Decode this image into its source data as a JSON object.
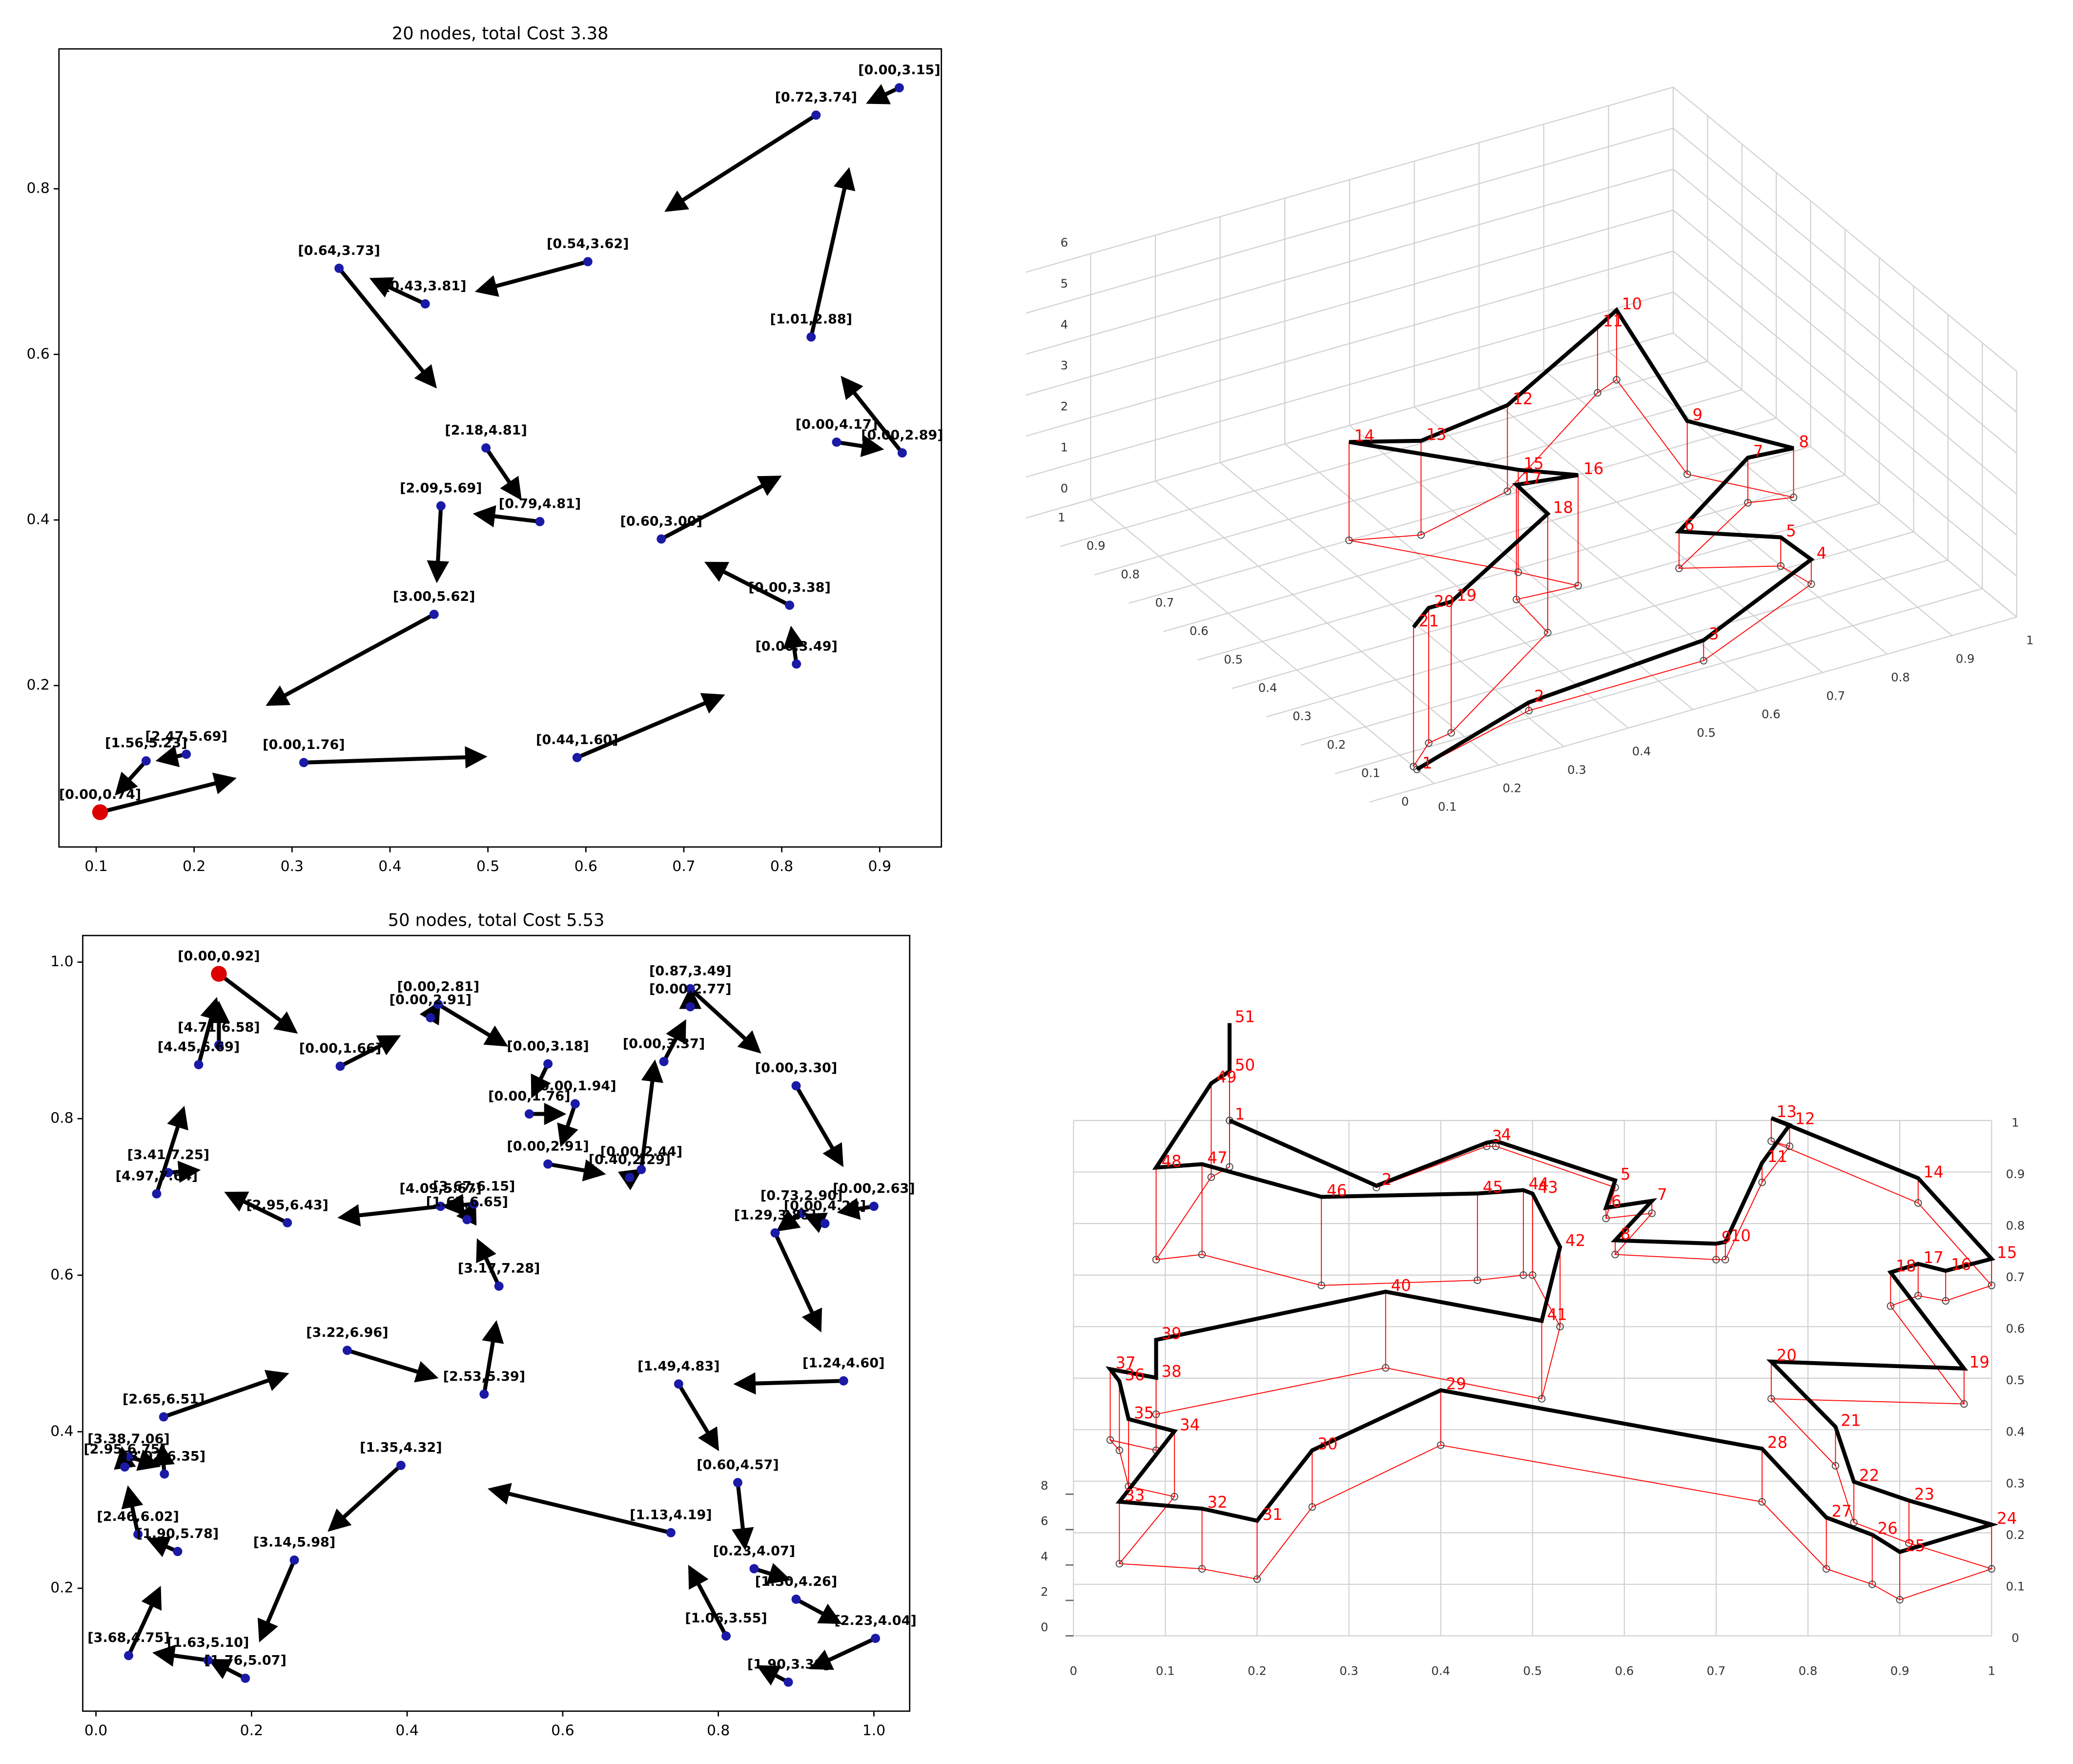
{
  "chart_data": [
    {
      "type": "quiver",
      "title": "20 nodes, total Cost 3.38",
      "x": [
        0.104,
        0.151,
        0.192,
        0.312,
        0.591,
        0.815,
        0.808,
        0.677,
        0.923,
        0.856,
        0.83,
        0.92,
        0.835,
        0.602,
        0.436,
        0.348,
        0.498,
        0.553,
        0.452,
        0.445
      ],
      "y": [
        0.047,
        0.109,
        0.117,
        0.107,
        0.113,
        0.226,
        0.297,
        0.377,
        0.481,
        0.494,
        0.621,
        0.922,
        0.889,
        0.712,
        0.661,
        0.704,
        0.487,
        0.398,
        0.417,
        0.286
      ],
      "u": [
        0.135,
        -0.029,
        -0.027,
        0.183,
        0.147,
        -0.005,
        -0.083,
        0.119,
        -0.06,
        0.044,
        0.038,
        -0.03,
        -0.151,
        -0.111,
        -0.053,
        0.097,
        0.034,
        -0.064,
        -0.004,
        -0.168
      ],
      "v": [
        0.04,
        -0.038,
        -0.007,
        0.007,
        0.074,
        0.041,
        0.05,
        0.074,
        0.089,
        -0.008,
        0.2,
        -0.017,
        -0.114,
        -0.035,
        0.029,
        -0.141,
        -0.059,
        0.009,
        -0.088,
        -0.108
      ],
      "labels": [
        "[0.00,0.74]",
        "[1.56,5.23]",
        "[2.47,5.69]",
        "[0.00,1.76]",
        "[0.44,1.60]",
        "[0.00,3.49]",
        "[0.00,3.38]",
        "[0.60,3.00]",
        "[0.00,2.89]",
        "[0.00,4.17]",
        "[1.01,2.88]",
        "[0.00,3.15]",
        "[0.72,3.74]",
        "[0.54,3.62]",
        "[0.43,3.81]",
        "[0.64,3.73]",
        "[2.18,4.81]",
        "[0.79,4.81]",
        "[2.09,5.69]",
        "[3.00,5.62]"
      ],
      "color": "#1a1aa6",
      "depot_color": "#dd0000",
      "arrow_color": "#000000",
      "xlim": [
        0.062,
        0.963
      ],
      "ylim": [
        0.005,
        0.969
      ],
      "xticks": [
        0.1,
        0.2,
        0.3,
        0.4,
        0.5,
        0.6,
        0.7,
        0.8,
        0.9
      ],
      "yticks": [
        0.2,
        0.4,
        0.6,
        0.8
      ]
    },
    {
      "type": "line3d",
      "x": [
        0.1,
        0.31,
        0.58,
        0.81,
        0.8,
        0.68,
        0.85,
        0.91,
        0.82,
        0.87,
        0.83,
        0.59,
        0.43,
        0.34,
        0.49,
        0.54,
        0.45,
        0.44,
        0.19,
        0.15,
        0.1
      ],
      "y": [
        0.05,
        0.12,
        0.12,
        0.24,
        0.31,
        0.38,
        0.5,
        0.48,
        0.62,
        0.92,
        0.9,
        0.71,
        0.66,
        0.7,
        0.49,
        0.41,
        0.42,
        0.31,
        0.12,
        0.11,
        0.06
      ],
      "z": [
        0,
        0.2,
        0.5,
        0.6,
        0.7,
        0.9,
        1.1,
        1.2,
        1.3,
        1.7,
        1.6,
        2.1,
        2.3,
        2.4,
        2.5,
        2.7,
        2.8,
        2.9,
        3.2,
        3.3,
        3.4
      ],
      "labels": [
        1,
        2,
        3,
        4,
        5,
        6,
        7,
        8,
        9,
        10,
        11,
        12,
        13,
        14,
        15,
        16,
        17,
        18,
        19,
        20,
        21
      ],
      "path_color": "#000000",
      "floor_color": "#ff0000",
      "label_color": "#ff0000",
      "xlim": [
        0,
        1
      ],
      "ylim": [
        0,
        1
      ],
      "zlim": [
        0,
        6
      ],
      "xticks": [
        0.1,
        0.2,
        0.3,
        0.4,
        0.5,
        0.6,
        0.7,
        0.8,
        0.9,
        1
      ],
      "yticks": [
        0,
        0.1,
        0.2,
        0.3,
        0.4,
        0.5,
        0.6,
        0.7,
        0.8,
        0.9,
        1
      ],
      "zticks": [
        0,
        1,
        2,
        3,
        4,
        5,
        6
      ],
      "grid": true
    },
    {
      "type": "quiver",
      "title": "50 nodes, total Cost 5.53",
      "x": [
        0.158,
        0.314,
        0.43,
        0.44,
        0.581,
        0.557,
        0.616,
        0.581,
        0.686,
        0.701,
        0.73,
        0.764,
        0.764,
        0.9,
        1.0,
        0.937,
        0.907,
        0.873,
        0.961,
        0.749,
        0.825,
        0.846,
        0.9,
        1.002,
        0.89,
        0.81,
        0.739,
        0.392,
        0.255,
        0.192,
        0.144,
        0.042,
        0.105,
        0.054,
        0.037,
        0.088,
        0.042,
        0.087,
        0.323,
        0.499,
        0.518,
        0.477,
        0.486,
        0.443,
        0.246,
        0.078,
        0.093,
        0.132,
        0.158
      ],
      "y": [
        0.985,
        0.867,
        0.929,
        0.946,
        0.87,
        0.806,
        0.819,
        0.742,
        0.725,
        0.735,
        0.873,
        0.943,
        0.966,
        0.842,
        0.688,
        0.666,
        0.679,
        0.654,
        0.465,
        0.461,
        0.335,
        0.225,
        0.186,
        0.136,
        0.08,
        0.139,
        0.271,
        0.357,
        0.236,
        0.085,
        0.108,
        0.114,
        0.247,
        0.269,
        0.355,
        0.346,
        0.368,
        0.419,
        0.504,
        0.448,
        0.586,
        0.671,
        0.691,
        0.688,
        0.667,
        0.704,
        0.731,
        0.869,
        0.894
      ],
      "u": [
        0.097,
        0.073,
        0.01,
        0.085,
        -0.019,
        0.042,
        -0.017,
        0.069,
        0.012,
        0.017,
        0.026,
        0,
        0.087,
        0.058,
        -0.042,
        -0.023,
        -0.028,
        0.057,
        -0.136,
        0.049,
        0.009,
        0.042,
        0.054,
        -0.08,
        -0.036,
        -0.046,
        -0.23,
        -0.09,
        -0.043,
        -0.043,
        -0.066,
        0.039,
        -0.035,
        -0.012,
        -0.003,
        -0.003,
        0.036,
        0.156,
        0.112,
        0.015,
        -0.026,
        0.009,
        -0.036,
        -0.127,
        -0.076,
        0.034,
        0.036,
        0.022,
        0
      ],
      "v": [
        -0.073,
        0.037,
        0.017,
        -0.051,
        -0.039,
        0,
        -0.05,
        -0.012,
        0.008,
        0.135,
        0.049,
        0.02,
        -0.079,
        -0.099,
        -0.007,
        0.01,
        -0.02,
        -0.122,
        -0.004,
        -0.081,
        -0.081,
        -0.013,
        -0.029,
        -0.037,
        0.019,
        0.086,
        0.055,
        -0.081,
        -0.1,
        0.022,
        0.009,
        0.084,
        0.015,
        0.057,
        0.021,
        0.034,
        -0.011,
        0.054,
        -0.034,
        0.089,
        0.056,
        0.019,
        -0.003,
        -0.014,
        0.037,
        0.107,
        0.003,
        0.081,
        0.051
      ],
      "labels": [
        "[0.00,0.92]",
        "[0.00,1.66]",
        "[0.00,2.91]",
        "[0.00,2.81]",
        "[0.00,3.18]",
        "[0.00,1.76]",
        "[0.00,1.94]",
        "[0.00,2.91]",
        "[0.40,2.29]",
        "[0.00,2.44]",
        "[0.00,3.37]",
        "[0.00,2.77]",
        "[0.87,3.49]",
        "[0.00,3.30]",
        "[0.00,2.63]",
        "[0.00,4.22]",
        "[0.73,2.90]",
        "[1.29,3.85]",
        "[1.24,4.60]",
        "[1.49,4.83]",
        "[0.60,4.57]",
        "[0.23,4.07]",
        "[1.30,4.26]",
        "[2.23,4.04]",
        "[1.90,3.39]",
        "[1.06,3.55]",
        "[1.13,4.19]",
        "[1.35,4.32]",
        "[3.14,5.98]",
        "[1.76,5.07]",
        "[1.63,5.10]",
        "[3.68,4.75]",
        "[1.90,5.78]",
        "[2.46,6.02]",
        "[2.95,6.75]",
        "[3.02,6.35]",
        "[3.38,7.06]",
        "[2.65,6.51]",
        "[3.22,6.96]",
        "[2.53,5.39]",
        "[3.17,7.28]",
        "[1.67,6.65]",
        "[3.67,6.15]",
        "[4.09,5.67]",
        "[2.95,6.43]",
        "[4.97,7.64]",
        "[3.41,7.25]",
        "[4.45,6.69]",
        "[4.71,6.58]"
      ],
      "color": "#1a1aa6",
      "depot_color": "#dd0000",
      "arrow_color": "#000000",
      "xlim": [
        -0.017,
        1.046
      ],
      "ylim": [
        0.043,
        1.034
      ],
      "xticks": [
        {
          "value": 0,
          "label": "0.0"
        },
        0.2,
        0.4,
        0.6,
        0.8,
        {
          "value": 1,
          "label": "1.0"
        }
      ],
      "yticks": [
        0.2,
        0.4,
        0.6,
        0.8,
        {
          "value": 1,
          "label": "1.0"
        }
      ]
    },
    {
      "type": "line3d",
      "x": [
        0.17,
        0.33,
        0.45,
        0.46,
        0.59,
        0.58,
        0.63,
        0.59,
        0.7,
        0.71,
        0.75,
        0.78,
        0.76,
        0.92,
        1.0,
        0.95,
        0.92,
        0.89,
        0.97,
        0.76,
        0.83,
        0.85,
        0.91,
        1.0,
        0.9,
        0.87,
        0.82,
        0.75,
        0.4,
        0.26,
        0.2,
        0.14,
        0.05,
        0.11,
        0.06,
        0.05,
        0.04,
        0.09,
        0.09,
        0.34,
        0.51,
        0.53,
        0.5,
        0.49,
        0.44,
        0.27,
        0.14,
        0.09,
        0.15,
        0.17,
        0.17
      ],
      "y": [
        1.0,
        0.87,
        0.95,
        0.95,
        0.87,
        0.81,
        0.82,
        0.74,
        0.73,
        0.73,
        0.88,
        0.95,
        0.96,
        0.84,
        0.68,
        0.65,
        0.66,
        0.64,
        0.45,
        0.46,
        0.33,
        0.22,
        0.18,
        0.13,
        0.07,
        0.1,
        0.13,
        0.26,
        0.37,
        0.25,
        0.11,
        0.13,
        0.14,
        0.27,
        0.29,
        0.36,
        0.38,
        0.36,
        0.43,
        0.52,
        0.46,
        0.6,
        0.7,
        0.7,
        0.69,
        0.68,
        0.74,
        0.73,
        0.89,
        0.91,
        1.0
      ],
      "z": [
        0,
        0.1,
        0.2,
        0.3,
        0.4,
        0.6,
        0.7,
        0.8,
        0.9,
        1.0,
        1.1,
        1.2,
        1.3,
        1.4,
        1.5,
        1.7,
        1.8,
        1.9,
        2.0,
        2.1,
        2.2,
        2.3,
        2.4,
        2.5,
        2.7,
        2.8,
        2.9,
        3.0,
        3.1,
        3.2,
        3.3,
        3.4,
        3.5,
        3.7,
        3.8,
        3.9,
        4.0,
        4.1,
        4.2,
        4.3,
        4.4,
        4.5,
        4.6,
        4.8,
        4.9,
        5.0,
        5.1,
        5.2,
        5.3,
        5.4,
        5.5
      ],
      "labels": [
        1,
        2,
        3,
        4,
        5,
        6,
        7,
        8,
        9,
        10,
        11,
        12,
        13,
        14,
        15,
        16,
        17,
        18,
        19,
        20,
        21,
        22,
        23,
        24,
        25,
        26,
        27,
        28,
        29,
        30,
        31,
        32,
        33,
        34,
        35,
        36,
        37,
        38,
        39,
        40,
        41,
        42,
        43,
        44,
        45,
        46,
        47,
        48,
        49,
        50,
        51
      ],
      "path_color": "#000000",
      "floor_color": "#ff0000",
      "label_color": "#ff0000",
      "xlim": [
        0,
        1
      ],
      "ylim": [
        0,
        1
      ],
      "zlim": [
        0,
        8
      ],
      "xticks": [
        0,
        0.1,
        0.2,
        0.3,
        0.4,
        0.5,
        0.6,
        0.7,
        0.8,
        0.9,
        1
      ],
      "yticks": [
        0,
        0.1,
        0.2,
        0.3,
        0.4,
        0.5,
        0.6,
        0.7,
        0.8,
        0.9,
        1
      ],
      "zticks": [
        0,
        2,
        4,
        6,
        8
      ],
      "grid": true
    }
  ]
}
